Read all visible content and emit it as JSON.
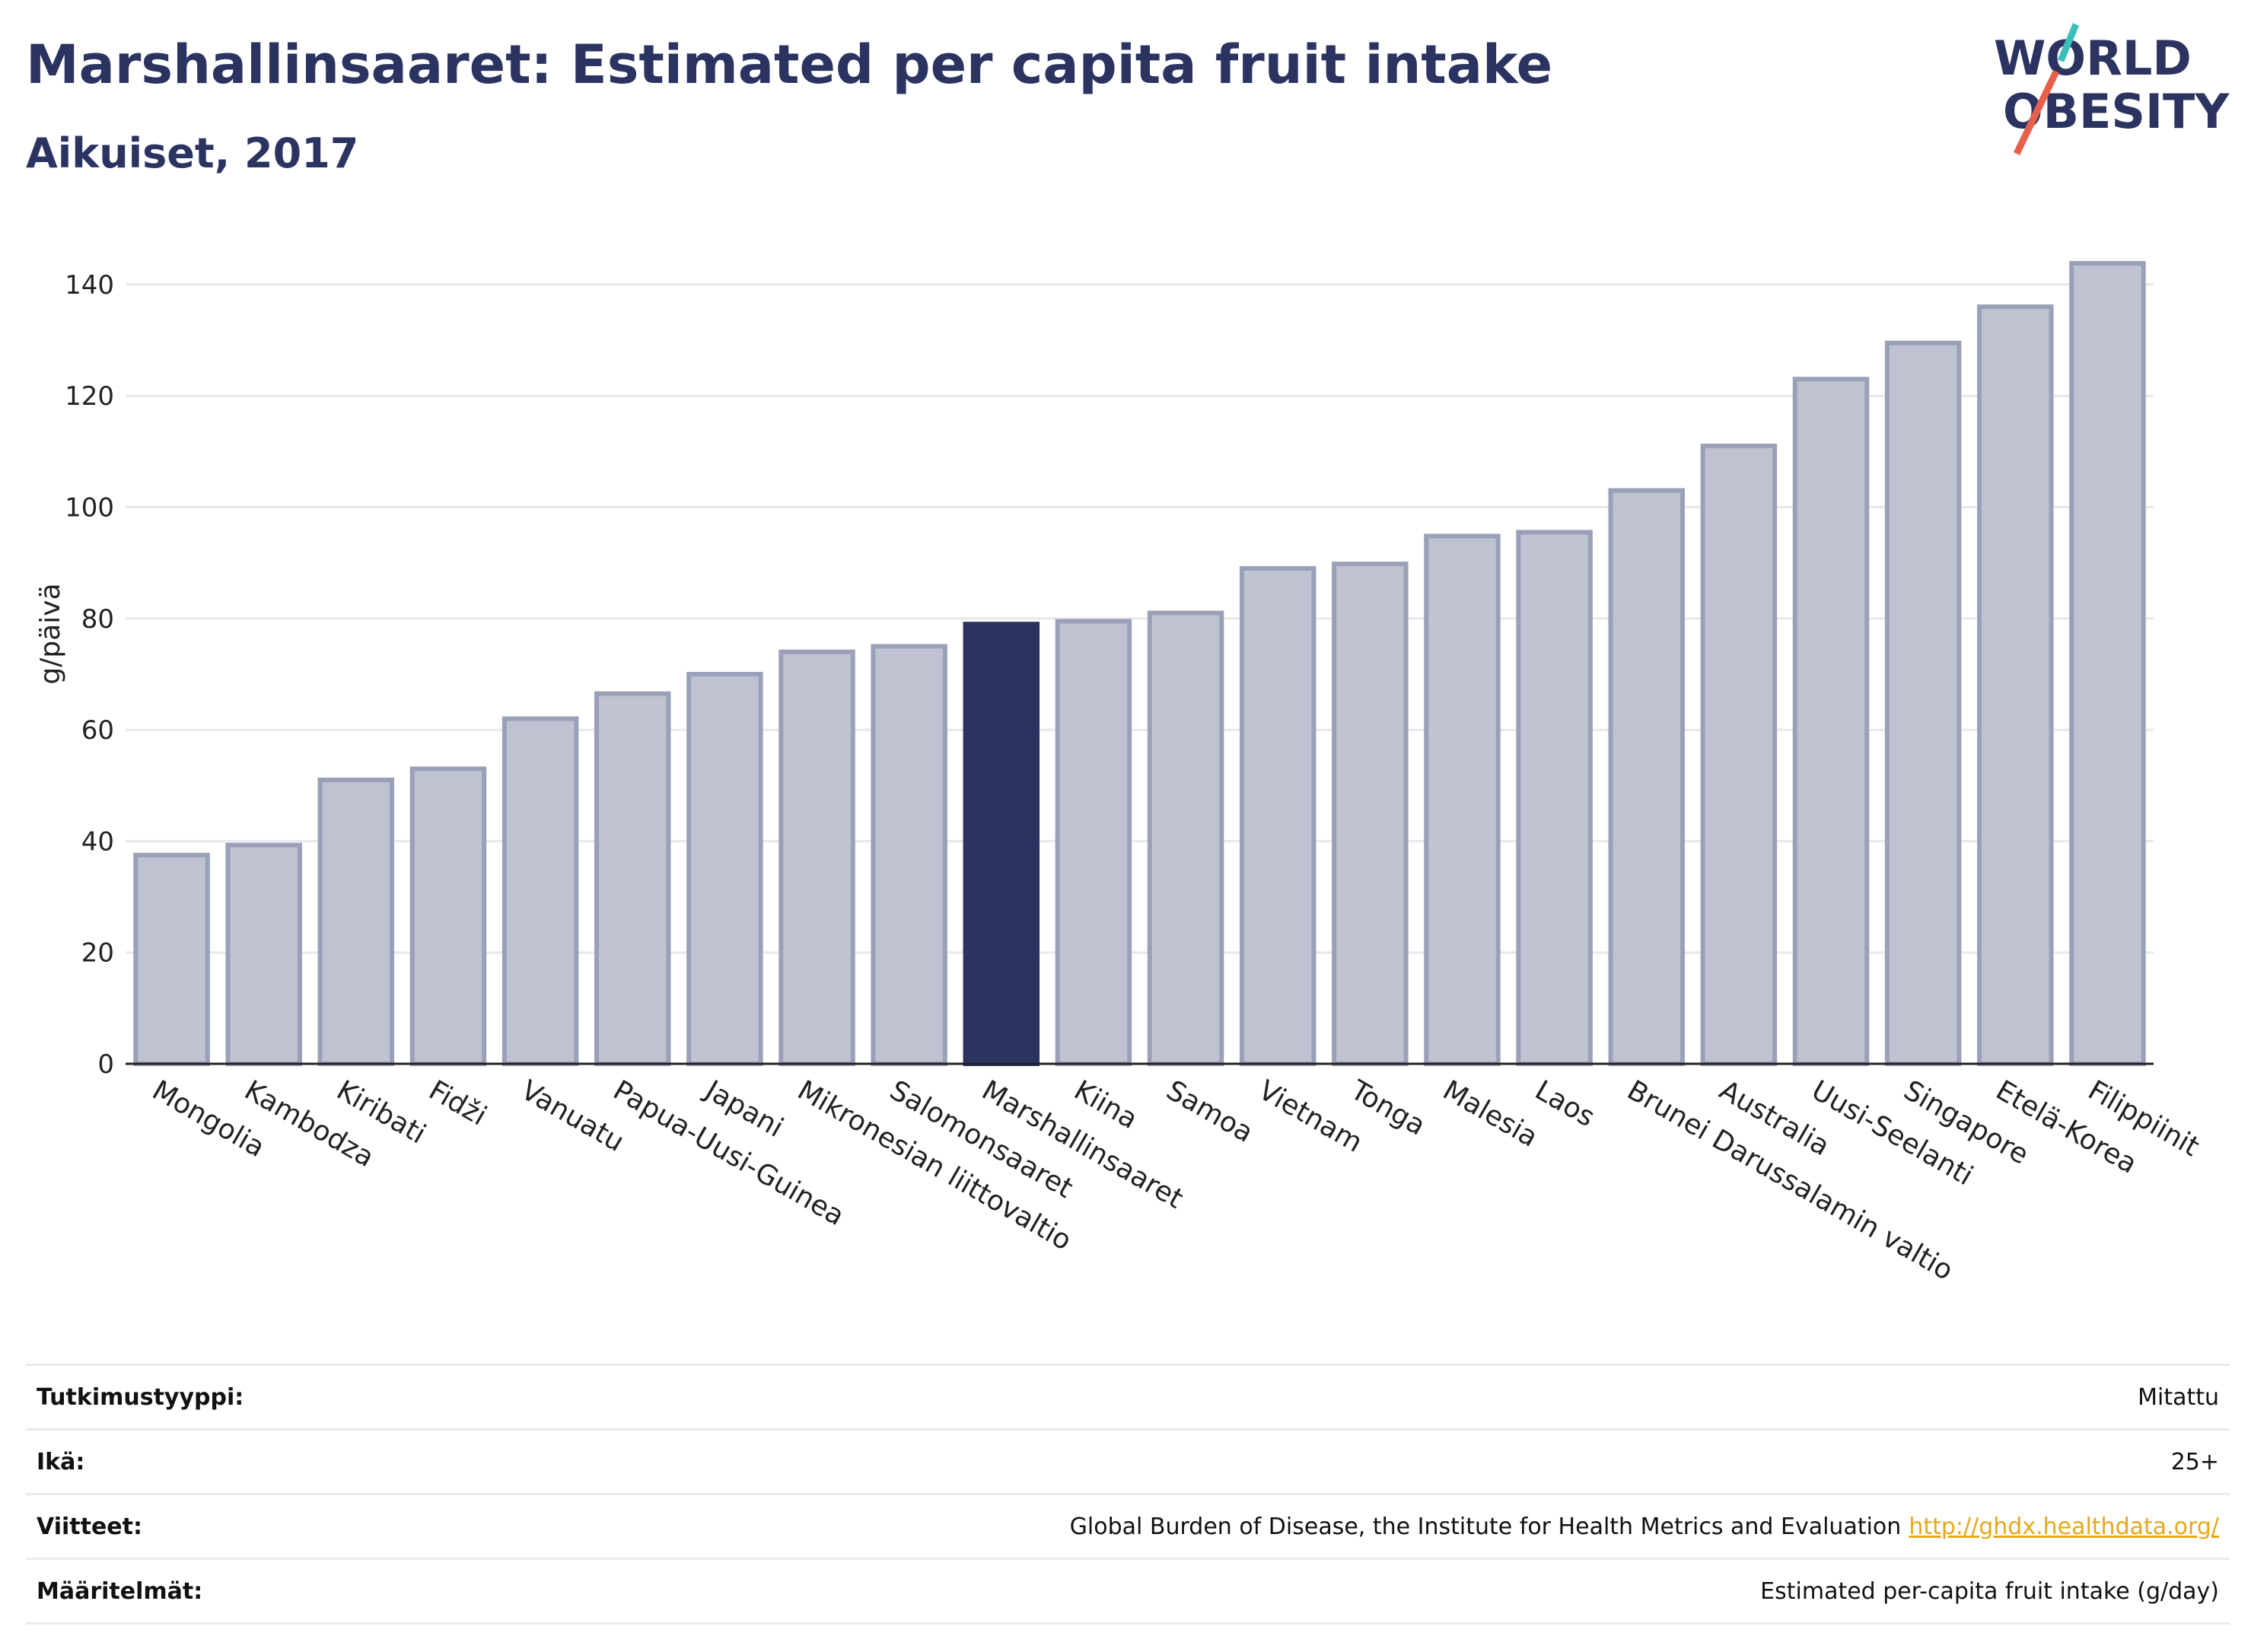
{
  "header": {
    "title": "Marshallinsaaret: Estimated per capita fruit intake",
    "subtitle": "Aikuiset, 2017"
  },
  "logo": {
    "line1": "WORLD",
    "line2": "OBESITY",
    "accent_teal": "#3bbfb8",
    "accent_red": "#e8604c",
    "text_color": "#2b3461"
  },
  "chart_data": {
    "type": "bar",
    "categories": [
      "Mongolia",
      "Kambodza",
      "Kiribati",
      "Fidži",
      "Vanuatu",
      "Papua-Uusi-Guinea",
      "Japani",
      "Mikronesian liittovaltio",
      "Salomonsaaret",
      "Marshallinsaaret",
      "Kiina",
      "Samoa",
      "Vietnam",
      "Tonga",
      "Malesia",
      "Laos",
      "Brunei Darussalamin valtio",
      "Australia",
      "Uusi-Seelanti",
      "Singapore",
      "Etelä-Korea",
      "Filippiinit"
    ],
    "values": [
      37.5,
      39.3,
      51,
      53,
      62,
      66.5,
      70,
      74,
      75,
      79,
      79.5,
      81,
      89,
      89.8,
      94.8,
      95.5,
      103,
      111,
      123,
      129.5,
      136,
      143.8
    ],
    "highlight": "Marshallinsaaret",
    "ylabel": "g/päivä",
    "ylim": [
      0,
      146
    ],
    "yticks": [
      0,
      20,
      40,
      60,
      80,
      100,
      120,
      140
    ],
    "grid": true,
    "colors": {
      "bar": "#bfc3d1",
      "bar_border": "#9aa0b8",
      "highlight": "#2b3461"
    }
  },
  "meta": [
    {
      "key": "Tutkimustyyppi:",
      "value": "Mitattu"
    },
    {
      "key": "Ikä:",
      "value": "25+"
    },
    {
      "key": "Viitteet:",
      "value": "Global Burden of Disease, the Institute for Health Metrics and Evaluation",
      "link": "http://ghdx.healthdata.org/"
    },
    {
      "key": "Määritelmät:",
      "value": "Estimated per-capita fruit intake (g/day)"
    }
  ]
}
